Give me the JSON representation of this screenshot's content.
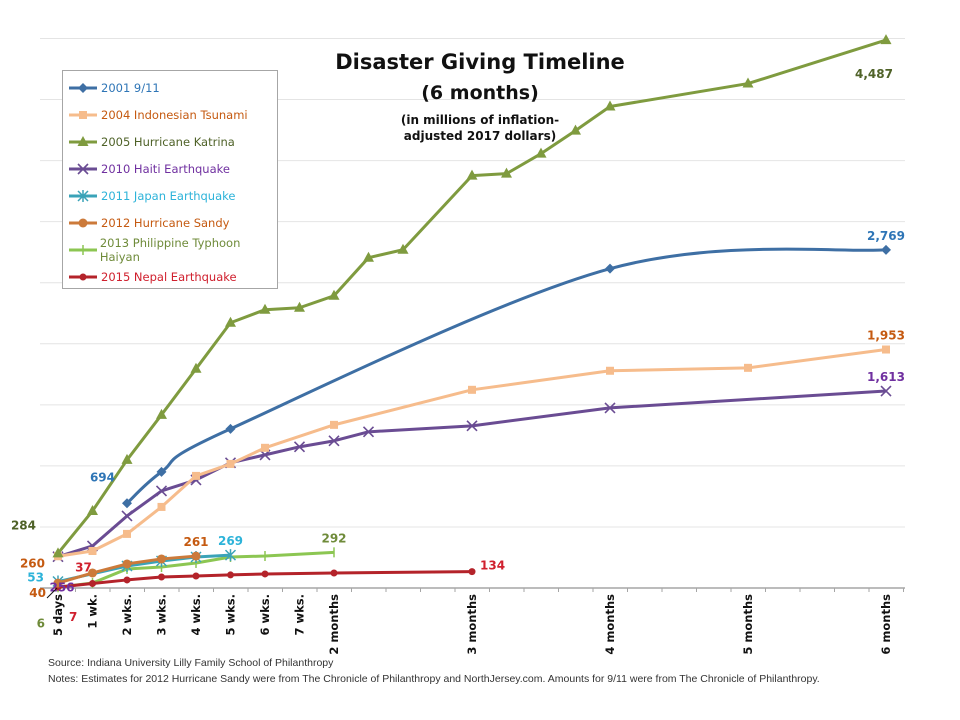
{
  "chart_data": {
    "type": "line",
    "title": "Disaster Giving Timeline",
    "subtitle": "(6 months)",
    "note_line1": "(in millions of inflation-",
    "note_line2": "adjusted 2017 dollars)",
    "xlabel": "",
    "ylabel": "",
    "ylim": [
      0,
      4500
    ],
    "grid": true,
    "legend_position": "top-left",
    "x_ticks": [
      {
        "t": 0,
        "label": "5 days"
      },
      {
        "t": 1,
        "label": "1 wk."
      },
      {
        "t": 2,
        "label": "2 wks."
      },
      {
        "t": 3,
        "label": "3 wks."
      },
      {
        "t": 4,
        "label": "4 wks."
      },
      {
        "t": 5,
        "label": "5 wks."
      },
      {
        "t": 6,
        "label": "6 wks."
      },
      {
        "t": 7,
        "label": "7 wks."
      },
      {
        "t": 8,
        "label": "2 months"
      },
      {
        "t": 12,
        "label": "3 months"
      },
      {
        "t": 16,
        "label": "4 months"
      },
      {
        "t": 20,
        "label": "5 months"
      },
      {
        "t": 24,
        "label": "6 months"
      }
    ],
    "series": [
      {
        "name": "2001 9/11",
        "color": "#3e6fa4",
        "marker": "diamond",
        "smooth": true,
        "points": [
          [
            2,
            694
          ],
          [
            3,
            951
          ],
          [
            5,
            1303
          ],
          [
            16,
            2615
          ],
          [
            24,
            2769
          ]
        ],
        "labels": [
          {
            "t": 2,
            "text": "694",
            "pos": "above-left"
          },
          {
            "t": 24,
            "text": "2,769",
            "pos": "above"
          }
        ]
      },
      {
        "name": "2004 Indonesian Tsunami",
        "color": "#f6bc8c",
        "marker": "square",
        "smooth": false,
        "points": [
          [
            0,
            260
          ],
          [
            1,
            303
          ],
          [
            2,
            443
          ],
          [
            3,
            664
          ],
          [
            4,
            918
          ],
          [
            5,
            1016
          ],
          [
            6,
            1148
          ],
          [
            8,
            1336
          ],
          [
            12,
            1623
          ],
          [
            16,
            1779
          ],
          [
            20,
            1803
          ],
          [
            24,
            1953
          ]
        ],
        "labels": [
          {
            "t": 0,
            "text": "260",
            "pos": "left"
          },
          {
            "t": 24,
            "text": "1,953",
            "pos": "above"
          }
        ]
      },
      {
        "name": "2005 Hurricane Katrina",
        "color": "#7f9b3f",
        "marker": "triangle",
        "smooth": false,
        "points": [
          [
            0,
            284
          ],
          [
            1,
            631
          ],
          [
            2,
            1049
          ],
          [
            3,
            1418
          ],
          [
            4,
            1795
          ],
          [
            5,
            2172
          ],
          [
            6,
            2279
          ],
          [
            7,
            2295
          ],
          [
            8,
            2393
          ],
          [
            9,
            2705
          ],
          [
            10,
            2770
          ],
          [
            12,
            3377
          ],
          [
            13,
            3393
          ],
          [
            14,
            3557
          ],
          [
            15,
            3746
          ],
          [
            16,
            3943
          ],
          [
            20,
            4131
          ],
          [
            24,
            4487
          ]
        ],
        "labels": [
          {
            "t": 0,
            "text": "284",
            "pos": "above-left"
          },
          {
            "t": 24,
            "text": "4,487",
            "pos": "below"
          }
        ]
      },
      {
        "name": "2010 Haiti Earthquake",
        "color": "#6a4c93",
        "marker": "x",
        "smooth": false,
        "points": [
          [
            0,
            256
          ],
          [
            1,
            344
          ],
          [
            2,
            590
          ],
          [
            3,
            795
          ],
          [
            4,
            885
          ],
          [
            5,
            1025
          ],
          [
            6,
            1090
          ],
          [
            7,
            1156
          ],
          [
            8,
            1205
          ],
          [
            9,
            1279
          ],
          [
            12,
            1328
          ],
          [
            16,
            1475
          ],
          [
            24,
            1613
          ]
        ],
        "labels": [
          {
            "t": 0,
            "text": "256",
            "pos": "below"
          },
          {
            "t": 24,
            "text": "1,613",
            "pos": "above"
          }
        ]
      },
      {
        "name": "2011 Japan Earthquake",
        "color": "#3aa3b8",
        "marker": "star",
        "smooth": false,
        "points": [
          [
            0,
            53
          ],
          [
            2,
            180
          ],
          [
            3,
            221
          ],
          [
            4,
            254
          ],
          [
            5,
            269
          ]
        ],
        "labels": [
          {
            "t": 0,
            "text": "53",
            "pos": "left"
          },
          {
            "t": 5,
            "text": "269",
            "pos": "above"
          }
        ]
      },
      {
        "name": "2012 Hurricane Sandy",
        "color": "#cc7a3a",
        "marker": "circle",
        "smooth": false,
        "points": [
          [
            0,
            40
          ],
          [
            1,
            123
          ],
          [
            2,
            197
          ],
          [
            3,
            238
          ],
          [
            4,
            261
          ]
        ],
        "labels": [
          {
            "t": 0,
            "text": "40",
            "pos": "left"
          },
          {
            "t": 4,
            "text": "261",
            "pos": "above"
          }
        ]
      },
      {
        "name": "2013 Philippine Typhoon Haiyan",
        "color": "#8cc652",
        "marker": "plus",
        "smooth": false,
        "points": [
          [
            0,
            6
          ],
          [
            1,
            41
          ],
          [
            2,
            156
          ],
          [
            3,
            172
          ],
          [
            4,
            205
          ],
          [
            5,
            254
          ],
          [
            6,
            262
          ],
          [
            8,
            292
          ]
        ],
        "labels": [
          {
            "t": 0,
            "text": "6",
            "pos": "below-left"
          },
          {
            "t": 8,
            "text": "292",
            "pos": "above"
          }
        ]
      },
      {
        "name": "2015 Nepal Earthquake",
        "color": "#b4232a",
        "marker": "dot",
        "smooth": false,
        "points": [
          [
            0,
            7
          ],
          [
            1,
            37
          ],
          [
            2,
            66
          ],
          [
            3,
            90
          ],
          [
            4,
            98
          ],
          [
            5,
            107
          ],
          [
            6,
            115
          ],
          [
            8,
            123
          ],
          [
            12,
            134
          ]
        ],
        "labels": [
          {
            "t": 0,
            "text": "7",
            "pos": "below-right"
          },
          {
            "t": 1,
            "text": "37",
            "pos": "above-ish"
          },
          {
            "t": 12,
            "text": "134",
            "pos": "right"
          }
        ]
      }
    ],
    "label_colors": {
      "2001 9/11": "#2e75b6",
      "2004 Indonesian Tsunami": "#c55a11",
      "2005 Hurricane Katrina": "#4f6228",
      "2010 Haiti Earthquake": "#7030a0",
      "2011 Japan Earthquake": "#2db3d9",
      "2012 Hurricane Sandy": "#c55a11",
      "2013 Philippine Typhoon Haiyan": "#6f8b3a",
      "2015 Nepal Earthquake": "#d0202e"
    }
  },
  "footer": {
    "source": "Source: Indiana University Lilly Family School of Philanthropy",
    "notes": "Notes:  Estimates for 2012 Hurricane Sandy were from The Chronicle of Philanthropy and NorthJersey.com. Amounts for 9/11 were from The Chronicle of Philanthropy."
  }
}
